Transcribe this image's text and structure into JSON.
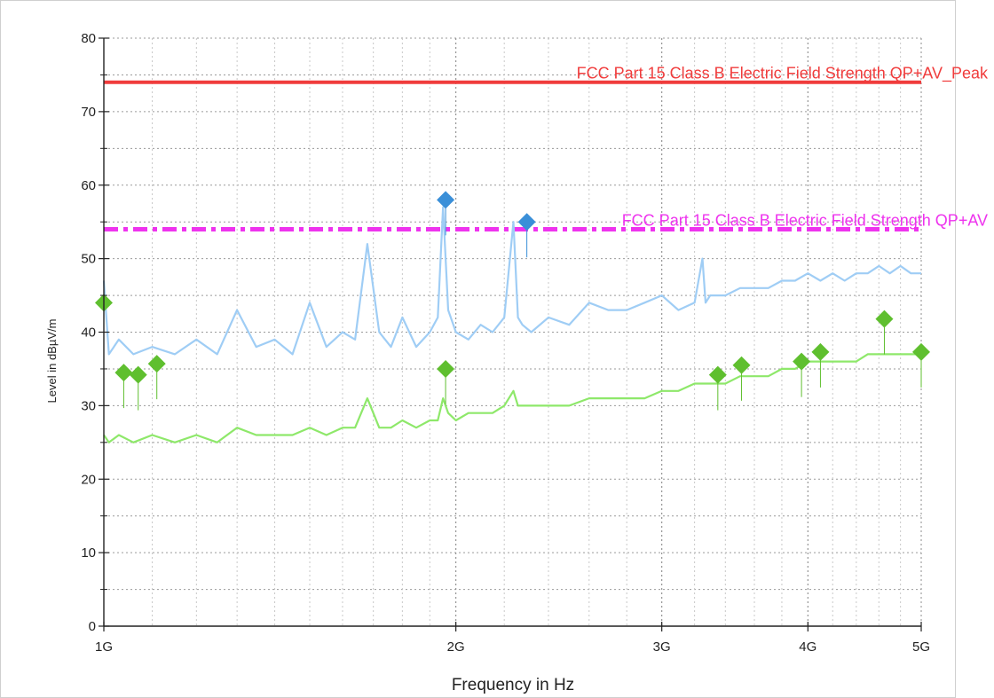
{
  "chart_data": {
    "type": "line",
    "title": "",
    "xlabel": "Frequency in Hz",
    "ylabel": "Level in dBµV/m",
    "xscale": "log",
    "xlim": [
      1000000000,
      5000000000
    ],
    "ylim": [
      0,
      80
    ],
    "grid": true,
    "x_ticks": [
      {
        "value": 1000000000,
        "label": "1G"
      },
      {
        "value": 2000000000,
        "label": "2G"
      },
      {
        "value": 3000000000,
        "label": "3G"
      },
      {
        "value": 4000000000,
        "label": "4G"
      },
      {
        "value": 5000000000,
        "label": "5G"
      }
    ],
    "y_ticks": [
      0,
      10,
      20,
      30,
      40,
      50,
      60,
      70,
      80
    ],
    "y_tick_labels": [
      "0",
      "10",
      "20",
      "30",
      "40",
      "50",
      "60",
      "70",
      "80"
    ],
    "limit_lines": [
      {
        "name": "FCC Part 15 Class B Electric Field Strength QP+AV_Peak",
        "value": 74,
        "color": "#f03c3c",
        "style": "solid"
      },
      {
        "name": "FCC Part 15 Class B Electric Field Strength QP+AV",
        "value": 54,
        "color": "#ee33ee",
        "style": "dashdot"
      }
    ],
    "series": [
      {
        "color": "#9fcdf5",
        "x": [
          1000000000,
          1010000000,
          1030000000,
          1060000000,
          1100000000,
          1150000000,
          1200000000,
          1250000000,
          1300000000,
          1350000000,
          1400000000,
          1450000000,
          1500000000,
          1550000000,
          1600000000,
          1640000000,
          1680000000,
          1720000000,
          1760000000,
          1800000000,
          1850000000,
          1900000000,
          1930000000,
          1950000000,
          1970000000,
          2000000000,
          2050000000,
          2100000000,
          2150000000,
          2200000000,
          2240000000,
          2260000000,
          2280000000,
          2320000000,
          2400000000,
          2500000000,
          2600000000,
          2700000000,
          2800000000,
          2900000000,
          3000000000,
          3100000000,
          3200000000,
          3250000000,
          3270000000,
          3300000000,
          3400000000,
          3500000000,
          3600000000,
          3700000000,
          3800000000,
          3900000000,
          4000000000,
          4100000000,
          4200000000,
          4300000000,
          4400000000,
          4500000000,
          4600000000,
          4700000000,
          4800000000,
          4900000000,
          5000000000
        ],
        "values": [
          47,
          37,
          39,
          37,
          38,
          37,
          39,
          37,
          43,
          38,
          39,
          37,
          44,
          38,
          40,
          39,
          52,
          40,
          38,
          42,
          38,
          40,
          42,
          57,
          43,
          40,
          39,
          41,
          40,
          42,
          55,
          42,
          41,
          40,
          42,
          41,
          44,
          43,
          43,
          44,
          45,
          43,
          44,
          50,
          44,
          45,
          45,
          46,
          46,
          46,
          47,
          47,
          48,
          47,
          48,
          47,
          48,
          48,
          49,
          48,
          49,
          48,
          48
        ]
      },
      {
        "color": "#8ee86a",
        "x": [
          1000000000,
          1010000000,
          1030000000,
          1060000000,
          1100000000,
          1150000000,
          1200000000,
          1250000000,
          1300000000,
          1350000000,
          1400000000,
          1450000000,
          1500000000,
          1550000000,
          1600000000,
          1640000000,
          1680000000,
          1720000000,
          1760000000,
          1800000000,
          1850000000,
          1900000000,
          1930000000,
          1950000000,
          1970000000,
          2000000000,
          2050000000,
          2100000000,
          2150000000,
          2200000000,
          2240000000,
          2260000000,
          2280000000,
          2320000000,
          2400000000,
          2500000000,
          2600000000,
          2700000000,
          2800000000,
          2900000000,
          3000000000,
          3100000000,
          3200000000,
          3250000000,
          3270000000,
          3300000000,
          3400000000,
          3500000000,
          3600000000,
          3700000000,
          3800000000,
          3900000000,
          4000000000,
          4100000000,
          4200000000,
          4300000000,
          4400000000,
          4500000000,
          4600000000,
          4700000000,
          4800000000,
          4900000000,
          5000000000
        ],
        "values": [
          26,
          25,
          26,
          25,
          26,
          25,
          26,
          25,
          27,
          26,
          26,
          26,
          27,
          26,
          27,
          27,
          31,
          27,
          27,
          28,
          27,
          28,
          28,
          31,
          29,
          28,
          29,
          29,
          29,
          30,
          32,
          30,
          30,
          30,
          30,
          30,
          31,
          31,
          31,
          31,
          32,
          32,
          33,
          33,
          33,
          33,
          33,
          34,
          34,
          34,
          35,
          35,
          36,
          36,
          36,
          36,
          36,
          37,
          37,
          37,
          37,
          37,
          37
        ]
      }
    ],
    "markers": [
      {
        "series": "peak",
        "color": "#3a8fd8",
        "points": [
          {
            "x": 1960000000,
            "y": 58
          },
          {
            "x": 2300000000,
            "y": 55
          }
        ]
      },
      {
        "series": "final",
        "color": "#5fbf2f",
        "points": [
          {
            "x": 1000000000,
            "y": 44
          },
          {
            "x": 1040000000,
            "y": 34.5
          },
          {
            "x": 1070000000,
            "y": 34.2
          },
          {
            "x": 1110000000,
            "y": 35.7
          },
          {
            "x": 1960000000,
            "y": 35
          },
          {
            "x": 3350000000,
            "y": 34.2
          },
          {
            "x": 3510000000,
            "y": 35.5
          },
          {
            "x": 3950000000,
            "y": 36
          },
          {
            "x": 4100000000,
            "y": 37.3
          },
          {
            "x": 4650000000,
            "y": 41.8
          },
          {
            "x": 5000000000,
            "y": 37.3
          }
        ]
      }
    ]
  }
}
